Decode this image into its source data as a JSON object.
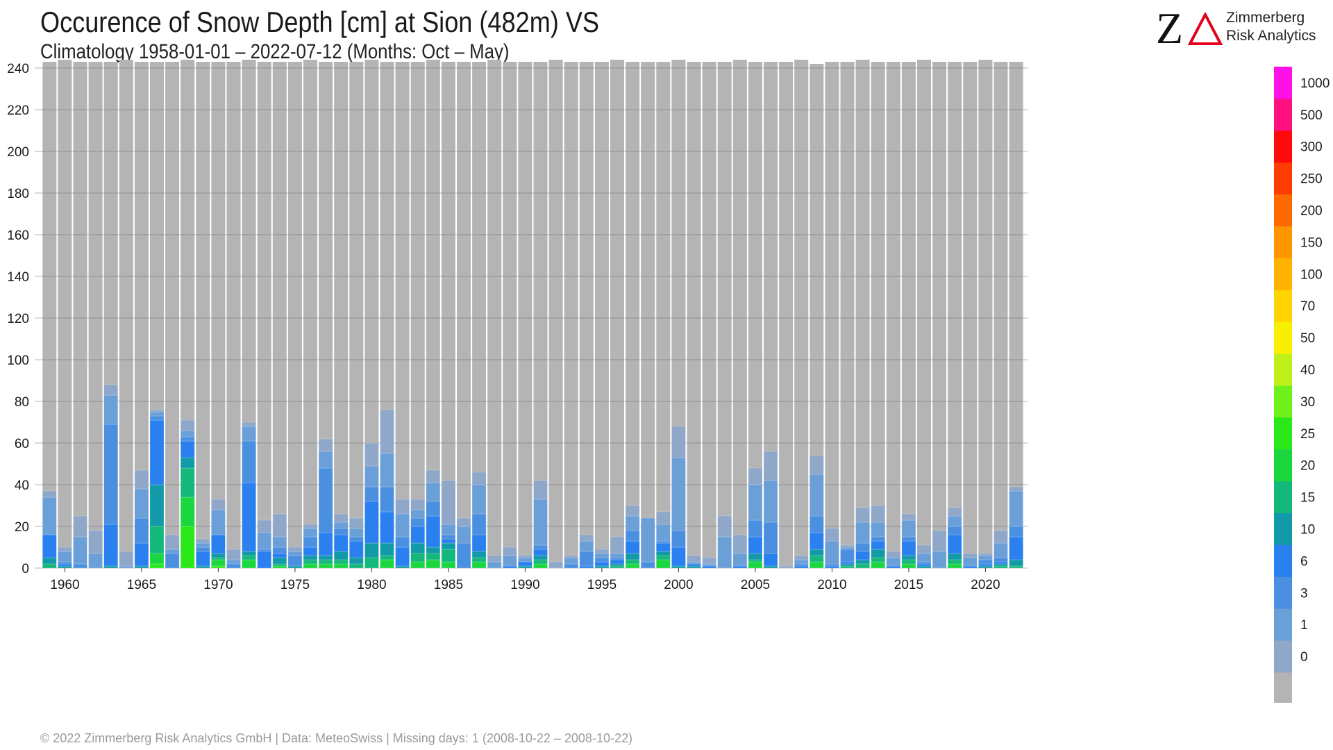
{
  "header": {
    "title": "Occurence of Snow Depth [cm] at Sion (482m) VS",
    "subtitle": "Climatology 1958-01-01 – 2022-07-12 (Months: Oct – May)"
  },
  "logo": {
    "mark_z": "Z",
    "line1": "Zimmerberg",
    "line2": "Risk Analytics",
    "accent_color": "#e3001b"
  },
  "footer": {
    "text": "©  2022 Zimmerberg Risk Analytics GmbH | Data: MeteoSwiss | Missing days: 1 (2008-10-22 – 2008-10-22)"
  },
  "chart_data": {
    "type": "bar",
    "stacked": true,
    "x": [
      1959,
      1960,
      1961,
      1962,
      1963,
      1964,
      1965,
      1966,
      1967,
      1968,
      1969,
      1970,
      1971,
      1972,
      1973,
      1974,
      1975,
      1976,
      1977,
      1978,
      1979,
      1980,
      1981,
      1982,
      1983,
      1984,
      1985,
      1986,
      1987,
      1988,
      1989,
      1990,
      1991,
      1992,
      1993,
      1994,
      1995,
      1996,
      1997,
      1998,
      1999,
      2000,
      2001,
      2002,
      2003,
      2004,
      2005,
      2006,
      2007,
      2008,
      2009,
      2010,
      2011,
      2012,
      2013,
      2014,
      2015,
      2016,
      2017,
      2018,
      2019,
      2020,
      2021,
      2022
    ],
    "xticks": [
      1960,
      1965,
      1970,
      1975,
      1980,
      1985,
      1990,
      1995,
      2000,
      2005,
      2010,
      2015,
      2020
    ],
    "ylim": [
      0,
      243
    ],
    "yticks": [
      0,
      20,
      40,
      60,
      80,
      100,
      120,
      140,
      160,
      180,
      200,
      220,
      240
    ],
    "grid": true,
    "no_snow_color": "#b4b4b4",
    "bins": [
      "0",
      "1",
      "3",
      "6",
      "10",
      "15",
      "20",
      "25",
      "30",
      "40",
      "50",
      "70",
      "100",
      "150",
      "200",
      "250",
      "300",
      "500",
      "1000"
    ],
    "bin_colors": [
      "#8fa7c9",
      "#6a9fd8",
      "#4b8fe0",
      "#2a80ee",
      "#139aa8",
      "#14b87a",
      "#1ad63f",
      "#2ae81a",
      "#6ef01a",
      "#c0f01a",
      "#f8f000",
      "#ffd400",
      "#ffb300",
      "#ff9500",
      "#ff6a00",
      "#ff3c00",
      "#ff0a0a",
      "#ff1080",
      "#ff10e6"
    ],
    "total_days": [
      243,
      244,
      243,
      243,
      243,
      244,
      243,
      243,
      243,
      244,
      243,
      243,
      243,
      244,
      243,
      243,
      243,
      244,
      243,
      243,
      243,
      244,
      243,
      243,
      243,
      244,
      243,
      243,
      243,
      244,
      243,
      243,
      243,
      244,
      243,
      243,
      243,
      244,
      243,
      243,
      243,
      244,
      243,
      243,
      243,
      244,
      243,
      243,
      243,
      244,
      242,
      243,
      243,
      244,
      243,
      243,
      243,
      244,
      243,
      243,
      243,
      244,
      243,
      243
    ],
    "series": [
      {
        "bin": "25",
        "values": [
          0,
          0,
          0,
          0,
          0,
          0,
          0,
          2,
          0,
          20,
          0,
          1,
          0,
          0,
          0,
          0,
          0,
          0,
          0,
          0,
          0,
          0,
          0,
          0,
          0,
          0,
          0,
          0,
          0,
          0,
          0,
          0,
          0,
          0,
          0,
          0,
          0,
          0,
          0,
          0,
          0,
          0,
          0,
          0,
          0,
          0,
          0,
          0,
          0,
          0,
          0,
          0,
          0,
          0,
          0,
          0,
          0,
          0,
          0,
          0,
          0,
          0,
          0,
          0
        ]
      },
      {
        "bin": "20",
        "values": [
          0,
          0,
          0,
          0,
          0,
          0,
          0,
          5,
          0,
          14,
          0,
          3,
          0,
          4,
          0,
          1,
          0,
          2,
          2,
          2,
          0,
          0,
          4,
          0,
          3,
          4,
          3,
          0,
          3,
          0,
          0,
          0,
          2,
          0,
          0,
          0,
          0,
          0,
          2,
          0,
          4,
          0,
          0,
          0,
          0,
          0,
          3,
          0,
          0,
          0,
          3,
          0,
          0,
          0,
          3,
          0,
          2,
          0,
          0,
          2,
          0,
          0,
          0,
          0
        ]
      },
      {
        "bin": "15",
        "values": [
          2,
          0,
          0,
          0,
          0,
          0,
          0,
          13,
          0,
          14,
          0,
          1,
          0,
          2,
          0,
          1,
          0,
          2,
          2,
          2,
          2,
          5,
          2,
          0,
          4,
          3,
          6,
          0,
          2,
          0,
          0,
          0,
          2,
          0,
          0,
          0,
          0,
          1,
          2,
          0,
          2,
          0,
          0,
          0,
          0,
          0,
          1,
          0,
          0,
          0,
          3,
          0,
          1,
          2,
          2,
          0,
          2,
          0,
          0,
          2,
          0,
          0,
          1,
          1
        ]
      },
      {
        "bin": "10",
        "values": [
          3,
          1,
          0,
          0,
          1,
          0,
          1,
          20,
          0,
          5,
          1,
          2,
          0,
          2,
          0,
          3,
          1,
          2,
          2,
          4,
          3,
          7,
          6,
          1,
          5,
          3,
          3,
          0,
          3,
          0,
          0,
          1,
          2,
          0,
          0,
          0,
          1,
          1,
          3,
          0,
          2,
          1,
          1,
          0,
          0,
          0,
          3,
          1,
          0,
          0,
          3,
          0,
          1,
          2,
          4,
          0,
          2,
          1,
          0,
          3,
          0,
          1,
          1,
          3
        ]
      },
      {
        "bin": "6",
        "values": [
          11,
          1,
          0,
          0,
          20,
          0,
          11,
          31,
          0,
          8,
          7,
          9,
          0,
          33,
          8,
          2,
          0,
          4,
          11,
          8,
          8,
          20,
          15,
          9,
          8,
          15,
          2,
          0,
          8,
          0,
          1,
          2,
          3,
          0,
          0,
          1,
          2,
          2,
          6,
          0,
          4,
          9,
          1,
          1,
          0,
          1,
          8,
          6,
          0,
          1,
          8,
          1,
          1,
          4,
          4,
          1,
          7,
          1,
          0,
          9,
          1,
          1,
          1,
          11
        ]
      },
      {
        "bin": "3",
        "values": [
          0,
          1,
          2,
          0,
          48,
          0,
          12,
          2,
          7,
          2,
          2,
          0,
          2,
          20,
          1,
          3,
          5,
          5,
          31,
          3,
          2,
          7,
          12,
          5,
          4,
          7,
          2,
          12,
          10,
          0,
          0,
          0,
          2,
          0,
          2,
          7,
          2,
          1,
          5,
          3,
          1,
          8,
          0,
          0,
          0,
          0,
          8,
          15,
          0,
          1,
          8,
          1,
          6,
          4,
          2,
          0,
          2,
          1,
          0,
          4,
          0,
          2,
          2,
          5
        ]
      },
      {
        "bin": "1",
        "values": [
          18,
          5,
          13,
          7,
          14,
          1,
          14,
          2,
          2,
          3,
          2,
          12,
          2,
          7,
          8,
          5,
          2,
          4,
          8,
          3,
          4,
          10,
          16,
          11,
          4,
          9,
          5,
          8,
          14,
          3,
          5,
          2,
          22,
          0,
          3,
          5,
          2,
          2,
          7,
          21,
          8,
          35,
          1,
          1,
          15,
          6,
          17,
          20,
          0,
          2,
          20,
          11,
          1,
          10,
          7,
          4,
          8,
          4,
          8,
          5,
          4,
          2,
          7,
          17
        ]
      },
      {
        "bin": "0",
        "values": [
          3,
          2,
          10,
          11,
          5,
          7,
          9,
          1,
          7,
          5,
          2,
          5,
          5,
          2,
          6,
          11,
          2,
          2,
          6,
          4,
          5,
          11,
          21,
          7,
          5,
          6,
          21,
          4,
          6,
          3,
          4,
          1,
          9,
          3,
          1,
          3,
          2,
          8,
          5,
          0,
          6,
          15,
          3,
          3,
          10,
          9,
          8,
          14,
          1,
          2,
          9,
          6,
          1,
          7,
          8,
          3,
          3,
          4,
          10,
          4,
          2,
          1,
          6,
          2
        ]
      }
    ]
  },
  "colorbar": {
    "labels": [
      "0",
      "1",
      "3",
      "6",
      "10",
      "15",
      "20",
      "25",
      "30",
      "40",
      "50",
      "70",
      "100",
      "150",
      "200",
      "250",
      "300",
      "500",
      "1000"
    ]
  }
}
